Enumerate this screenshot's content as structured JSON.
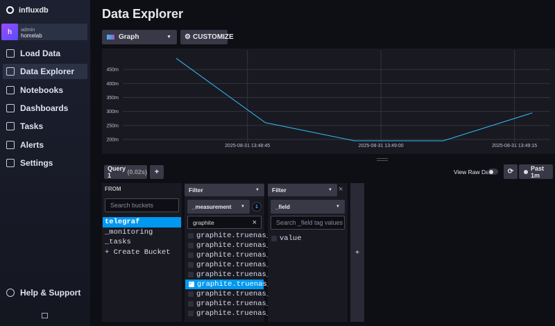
{
  "sidebar": {
    "brand": "influxdb",
    "user": {
      "initial": "h",
      "role": "admin",
      "org": "homelab"
    },
    "nav": [
      "Load Data",
      "Data Explorer",
      "Notebooks",
      "Dashboards",
      "Tasks",
      "Alerts",
      "Settings"
    ],
    "active_index": 1,
    "help": "Help & Support"
  },
  "header": {
    "title": "Data Explorer"
  },
  "toolbar": {
    "view_type": "Graph",
    "customize": "CUSTOMIZE"
  },
  "graph": {
    "type": "line",
    "color": "#31c0f6",
    "x": [
      "2025-08-31 13:48:37",
      "2025-08-31 13:48:47",
      "2025-08-31 13:48:57",
      "2025-08-31 13:49:07",
      "2025-08-31 13:49:17"
    ],
    "values": [
      0.49,
      0.26,
      0.195,
      0.195,
      0.295
    ],
    "xlim": [
      "2025-08-31 13:48:31",
      "2025-08-31 13:49:19"
    ],
    "xticks": [
      "2025-08-31 13:48:45",
      "2025-08-31 13:49:00",
      "2025-08-31 13:49:15"
    ],
    "ylim": [
      0.19,
      0.52
    ],
    "yticks": [
      {
        "value": 0.2,
        "label": "200m"
      },
      {
        "value": 0.25,
        "label": "250m"
      },
      {
        "value": 0.3,
        "label": "300m"
      },
      {
        "value": 0.35,
        "label": "350m"
      },
      {
        "value": 0.4,
        "label": "400m"
      },
      {
        "value": 0.45,
        "label": "450m"
      }
    ],
    "grid": true
  },
  "query_bar": {
    "tab": "Query 1",
    "duration": "(0.02s)",
    "add": "+",
    "raw_data": "View Raw Data",
    "time_range": "Past 1m"
  },
  "from": {
    "heading": "FROM",
    "search": "Search buckets",
    "buckets": [
      "telegraf",
      "_monitoring",
      "_tasks",
      "+ Create Bucket"
    ],
    "selected_index": 0
  },
  "filter1": {
    "heading": "Filter",
    "key": "_measurement",
    "count": "1",
    "search": "graphite",
    "items": [
      "graphite.truenas_repo…",
      "graphite.truenas_repo…",
      "graphite.truenas_repo…",
      "graphite.truenas_repo…",
      "graphite.truenas_repo…",
      "graphite.truenas_repo…",
      "graphite.truenas_repo…",
      "graphite.truenas_repo…",
      "graphite.truenas_repo…"
    ],
    "selected_index": 5
  },
  "filter2": {
    "heading": "Filter",
    "key": "_field",
    "search": "Search _field tag values",
    "items": [
      "value"
    ]
  },
  "add_panel": "+"
}
